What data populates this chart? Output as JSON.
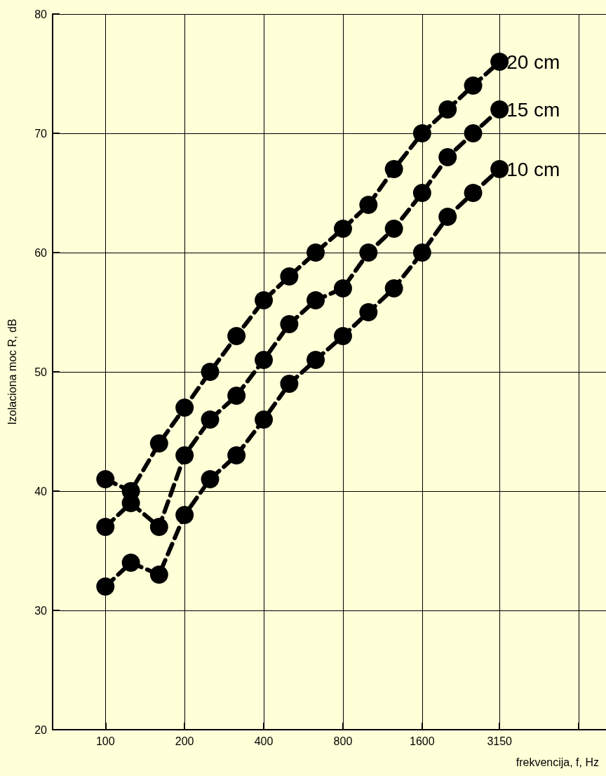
{
  "chart_data": {
    "type": "line",
    "xlabel": "frekvencija, f, Hz",
    "ylabel": "Izolaciona moc R, dB",
    "x": [
      100,
      125,
      160,
      200,
      250,
      315,
      400,
      500,
      630,
      800,
      1000,
      1250,
      1600,
      2000,
      2500,
      3150
    ],
    "series": [
      {
        "name": "20 cm",
        "color": "#000000",
        "values": [
          41,
          40,
          44,
          47,
          50,
          53,
          56,
          58,
          60,
          62,
          64,
          67,
          70,
          72,
          74,
          76
        ]
      },
      {
        "name": "15 cm",
        "color": "#000000",
        "values": [
          37,
          39,
          37,
          43,
          46,
          48,
          51,
          54,
          56,
          57,
          60,
          62,
          65,
          68,
          70,
          72
        ]
      },
      {
        "name": "10 cm",
        "color": "#000000",
        "values": [
          32,
          34,
          33,
          38,
          41,
          43,
          46,
          49,
          51,
          53,
          55,
          57,
          60,
          63,
          65,
          67
        ]
      }
    ],
    "log": "x",
    "xlim": [
      63,
      8000
    ],
    "xticks": [
      100,
      200,
      400,
      800,
      1600,
      3150,
      {
        "value": 6300,
        "label": null
      }
    ],
    "ylim": [
      20,
      80
    ],
    "yticks": [
      20,
      30,
      40,
      50,
      60,
      70,
      80
    ],
    "grid": true,
    "marker": "circle",
    "line_style": "dashed",
    "legend": false
  }
}
